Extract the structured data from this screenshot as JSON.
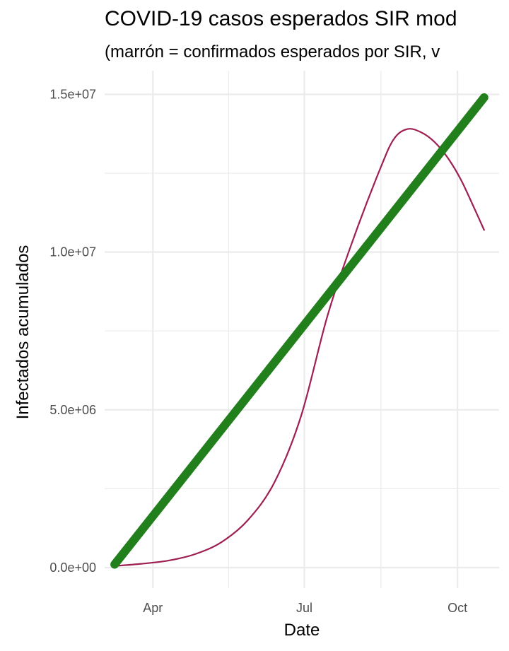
{
  "chart_data": {
    "type": "line",
    "title": "COVID-19 casos esperados SIR mod",
    "subtitle": "(marrón = confirmados esperados por SIR, v",
    "xlabel": "Date",
    "ylabel": "Infectados acumulados",
    "x_ticks": [
      {
        "date": "2020-04-01",
        "label": "Apr"
      },
      {
        "date": "2020-07-01",
        "label": "Jul"
      },
      {
        "date": "2020-10-01",
        "label": "Oct"
      }
    ],
    "y_ticks": [
      {
        "value": 0,
        "label": "0.0e+00"
      },
      {
        "value": 5000000,
        "label": "5.0e+06"
      },
      {
        "value": 10000000,
        "label": "1.0e+07"
      },
      {
        "value": 15000000,
        "label": "1.5e+07"
      }
    ],
    "xlim": [
      "2020-03-03",
      "2020-10-26"
    ],
    "ylim": [
      -650000,
      15750000
    ],
    "grid": true,
    "series": [
      {
        "color": "#9e1f52",
        "x": [
          "2020-03-09",
          "2020-03-25",
          "2020-04-10",
          "2020-04-26",
          "2020-05-12",
          "2020-05-28",
          "2020-06-13",
          "2020-06-29",
          "2020-07-15",
          "2020-07-31",
          "2020-08-16",
          "2020-08-24",
          "2020-09-01",
          "2020-09-09",
          "2020-09-17",
          "2020-09-25",
          "2020-10-03",
          "2020-10-11",
          "2020-10-17"
        ],
        "values": [
          50000,
          120000,
          220000,
          420000,
          800000,
          1500000,
          2700000,
          4800000,
          8000000,
          10500000,
          12700000,
          13600000,
          13900000,
          13800000,
          13500000,
          13000000,
          12300000,
          11400000,
          10700000
        ]
      },
      {
        "color": "#217f1c",
        "x": [
          "2020-03-09",
          "2020-10-17"
        ],
        "values": [
          100000,
          14900000
        ]
      }
    ]
  }
}
